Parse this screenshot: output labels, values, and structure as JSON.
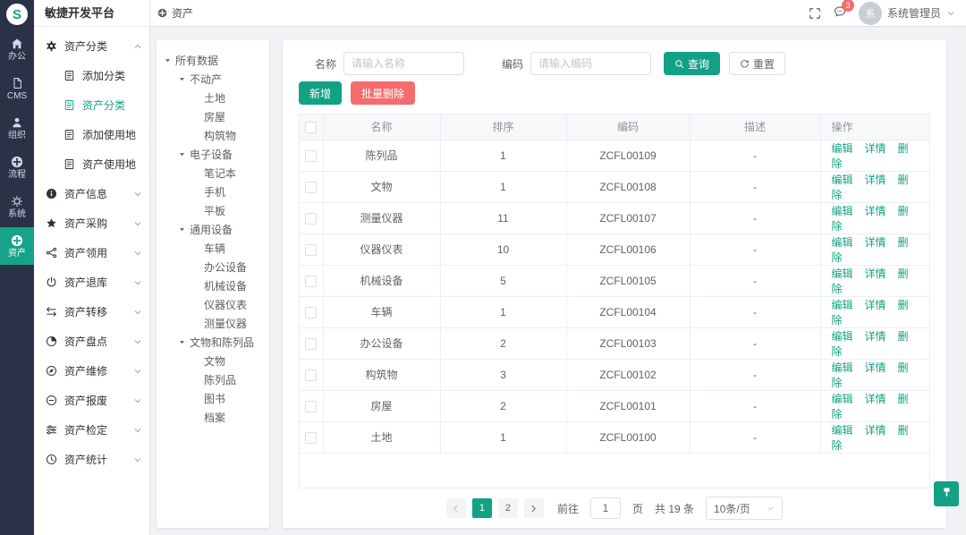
{
  "app": {
    "logo_letter": "S",
    "platform_title": "敏捷开发平台"
  },
  "colors": {
    "primary": "#13a186",
    "danger": "#f56c6c",
    "rail_bg": "#293246",
    "content_bg": "#f0f2f5"
  },
  "rail": {
    "items": [
      {
        "label": "办公",
        "icon": "home",
        "active": false
      },
      {
        "label": "CMS",
        "icon": "cms",
        "active": false
      },
      {
        "label": "组织",
        "icon": "user",
        "active": false
      },
      {
        "label": "流程",
        "icon": "circle-plus",
        "active": false
      },
      {
        "label": "系统",
        "icon": "gear",
        "active": false
      },
      {
        "label": "资产",
        "icon": "circle-plus",
        "active": true
      }
    ]
  },
  "topbar": {
    "tab_label": "资产",
    "badge_count": "3",
    "avatar_text": "系",
    "username": "系统管理员"
  },
  "sidebar": {
    "items": [
      {
        "label": "资产分类",
        "icon": "gear-solid",
        "chevron": "chevron-up",
        "type": "group"
      },
      {
        "label": "添加分类",
        "icon": "doc",
        "type": "child"
      },
      {
        "label": "资产分类",
        "icon": "doc",
        "type": "child",
        "active": true
      },
      {
        "label": "添加使用地",
        "icon": "doc",
        "type": "child"
      },
      {
        "label": "资产使用地",
        "icon": "doc",
        "type": "child"
      },
      {
        "label": "资产信息",
        "icon": "info",
        "chevron": "chevron-down",
        "type": "group"
      },
      {
        "label": "资产采购",
        "icon": "star",
        "chevron": "chevron-down",
        "type": "group"
      },
      {
        "label": "资产领用",
        "icon": "share",
        "chevron": "chevron-down",
        "type": "group"
      },
      {
        "label": "资产退库",
        "icon": "power",
        "chevron": "chevron-down",
        "type": "group"
      },
      {
        "label": "资产转移",
        "icon": "transfer",
        "chevron": "chevron-down",
        "type": "group"
      },
      {
        "label": "资产盘点",
        "icon": "pie",
        "chevron": "chevron-down",
        "type": "group"
      },
      {
        "label": "资产维修",
        "icon": "compass",
        "chevron": "chevron-down",
        "type": "group"
      },
      {
        "label": "资产报废",
        "icon": "minus-circle",
        "chevron": "chevron-down",
        "type": "group"
      },
      {
        "label": "资产检定",
        "icon": "sliders",
        "chevron": "chevron-down",
        "type": "group"
      },
      {
        "label": "资产统计",
        "icon": "clock",
        "chevron": "chevron-down",
        "type": "group"
      }
    ]
  },
  "tree": {
    "nodes": [
      {
        "label": "所有数据",
        "level": 0,
        "expandable": true
      },
      {
        "label": "不动产",
        "level": 1,
        "expandable": true
      },
      {
        "label": "土地",
        "level": 2
      },
      {
        "label": "房屋",
        "level": 2
      },
      {
        "label": "构筑物",
        "level": 2
      },
      {
        "label": "电子设备",
        "level": 1,
        "expandable": true
      },
      {
        "label": "笔记本",
        "level": 2
      },
      {
        "label": "手机",
        "level": 2
      },
      {
        "label": "平板",
        "level": 2
      },
      {
        "label": "通用设备",
        "level": 1,
        "expandable": true
      },
      {
        "label": "车辆",
        "level": 2
      },
      {
        "label": "办公设备",
        "level": 2
      },
      {
        "label": "机械设备",
        "level": 2
      },
      {
        "label": "仪器仪表",
        "level": 2
      },
      {
        "label": "测量仪器",
        "level": 2
      },
      {
        "label": "文物和陈列品",
        "level": 1,
        "expandable": true
      },
      {
        "label": "文物",
        "level": 2
      },
      {
        "label": "陈列品",
        "level": 2
      },
      {
        "label": "图书",
        "level": 2
      },
      {
        "label": "档案",
        "level": 2
      }
    ]
  },
  "filters": {
    "name_label": "名称",
    "name_placeholder": "请输入名称",
    "code_label": "编码",
    "code_placeholder": "请输入编码",
    "search_button": "查询",
    "reset_button": "重置"
  },
  "toolbar": {
    "add_button": "新增",
    "batch_delete_button": "批量删除"
  },
  "table": {
    "headers": {
      "name": "名称",
      "sort": "排序",
      "code": "编码",
      "desc": "描述",
      "ops": "操作"
    },
    "actions": {
      "edit": "编辑",
      "detail": "详情",
      "delete": "删除"
    },
    "rows": [
      {
        "name": "陈列品",
        "sort": "1",
        "code": "ZCFL00109",
        "desc": "-"
      },
      {
        "name": "文物",
        "sort": "1",
        "code": "ZCFL00108",
        "desc": "-"
      },
      {
        "name": "测量仪器",
        "sort": "11",
        "code": "ZCFL00107",
        "desc": "-"
      },
      {
        "name": "仪器仪表",
        "sort": "10",
        "code": "ZCFL00106",
        "desc": "-"
      },
      {
        "name": "机械设备",
        "sort": "5",
        "code": "ZCFL00105",
        "desc": "-"
      },
      {
        "name": "车辆",
        "sort": "1",
        "code": "ZCFL00104",
        "desc": "-"
      },
      {
        "name": "办公设备",
        "sort": "2",
        "code": "ZCFL00103",
        "desc": "-"
      },
      {
        "name": "构筑物",
        "sort": "3",
        "code": "ZCFL00102",
        "desc": "-"
      },
      {
        "name": "房屋",
        "sort": "2",
        "code": "ZCFL00101",
        "desc": "-"
      },
      {
        "name": "土地",
        "sort": "1",
        "code": "ZCFL00100",
        "desc": "-"
      }
    ]
  },
  "pagination": {
    "page1": "1",
    "page2": "2",
    "active_page": "1",
    "goto_label": "前往",
    "goto_value": "1",
    "page_unit": "页",
    "total": "共 19 条",
    "page_size": "10条/页"
  },
  "icons": {
    "tab": "circle-plus",
    "search": "search",
    "reset": "refresh",
    "fullscreen": "fullscreen",
    "message": "chat",
    "user_dropdown": "chevron-down",
    "tree_caret": "caret-down",
    "pager_prev": "chevron-left",
    "pager_next": "chevron-right",
    "select_dropdown": "chevron-down",
    "theme": "brush"
  }
}
